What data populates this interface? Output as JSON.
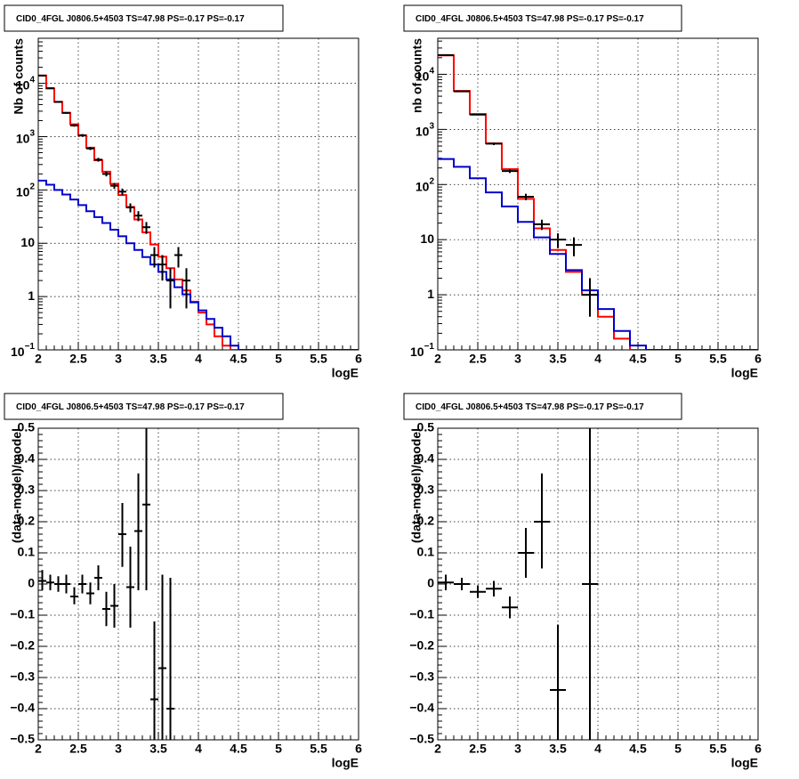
{
  "chart_data": [
    {
      "type": "line",
      "title": "CID0_4FGL J0806.5+4503 TS=47.98 PS=-0.17 PS=-0.17",
      "xlabel": "logE",
      "ylabel": "Nb of counts",
      "xlim": [
        2,
        6
      ],
      "ylim": [
        0.1,
        70000
      ],
      "yscale": "log",
      "grid": true,
      "xticks": [
        2,
        2.5,
        3,
        3.5,
        4,
        4.5,
        5,
        5.5,
        6
      ],
      "xtick_labels": [
        "2",
        "2.5",
        "3",
        "3.5",
        "4",
        "4.5",
        "5",
        "5.5",
        "6"
      ],
      "yticks": [
        0.1,
        1,
        10,
        100,
        1000,
        10000
      ],
      "ytick_labels": [
        "10^-1",
        "1",
        "10",
        "10^2",
        "10^3",
        "10^4"
      ],
      "bin_edges": [
        2.0,
        2.1,
        2.2,
        2.3,
        2.4,
        2.5,
        2.6,
        2.7,
        2.8,
        2.9,
        3.0,
        3.1,
        3.2,
        3.3,
        3.4,
        3.5,
        3.6,
        3.7,
        3.8,
        3.9,
        4.0,
        4.1,
        4.2,
        4.3,
        4.4,
        4.5,
        4.6,
        4.7,
        4.8,
        4.9,
        5.0,
        5.1,
        5.2,
        5.3,
        5.4,
        5.5,
        5.6,
        5.7,
        5.8,
        5.9,
        6.0
      ],
      "series": [
        {
          "color": "#ff0000",
          "style": "step",
          "values": [
            14000,
            8000,
            4500,
            2800,
            1700,
            1050,
            620,
            360,
            220,
            130,
            80,
            48,
            28,
            16,
            9.5,
            5.6,
            3.4,
            2.1,
            1.3,
            0.8,
            0.5,
            0.3,
            0.18,
            0.12,
            0.1,
            0.1,
            0.1,
            0.1,
            0.1,
            0.1,
            0.1,
            0.1,
            0.1,
            0.1,
            0.1,
            0.1,
            0.1,
            0.1,
            0.1,
            0.1
          ]
        },
        {
          "color": "#0000cc",
          "style": "step",
          "values": [
            150,
            125,
            100,
            82,
            66,
            52,
            40,
            31,
            24,
            18,
            13.5,
            10,
            7.5,
            5.5,
            4,
            2.9,
            2.1,
            1.5,
            1.1,
            0.78,
            0.55,
            0.38,
            0.26,
            0.18,
            0.12,
            0.1,
            0.1,
            0.1,
            0.1,
            0.1,
            0.1,
            0.1,
            0.1,
            0.1,
            0.1,
            0.1,
            0.1,
            0.1,
            0.1,
            0.1
          ]
        }
      ],
      "points": [
        {
          "x": 2.05,
          "y": 14000,
          "dx": 0.05,
          "ylo": 13800,
          "yhi": 14200
        },
        {
          "x": 2.15,
          "y": 8100,
          "dx": 0.05,
          "ylo": 7900,
          "yhi": 8300
        },
        {
          "x": 2.25,
          "y": 4480,
          "dx": 0.05,
          "ylo": 4350,
          "yhi": 4620
        },
        {
          "x": 2.35,
          "y": 2790,
          "dx": 0.05,
          "ylo": 2690,
          "yhi": 2890
        },
        {
          "x": 2.45,
          "y": 1620,
          "dx": 0.05,
          "ylo": 1540,
          "yhi": 1700
        },
        {
          "x": 2.55,
          "y": 1060,
          "dx": 0.05,
          "ylo": 1000,
          "yhi": 1120
        },
        {
          "x": 2.65,
          "y": 600,
          "dx": 0.05,
          "ylo": 560,
          "yhi": 640
        },
        {
          "x": 2.75,
          "y": 370,
          "dx": 0.05,
          "ylo": 340,
          "yhi": 400
        },
        {
          "x": 2.85,
          "y": 200,
          "dx": 0.05,
          "ylo": 180,
          "yhi": 220
        },
        {
          "x": 2.95,
          "y": 120,
          "dx": 0.05,
          "ylo": 105,
          "yhi": 135
        },
        {
          "x": 3.05,
          "y": 93,
          "dx": 0.05,
          "ylo": 80,
          "yhi": 106
        },
        {
          "x": 3.15,
          "y": 47,
          "dx": 0.05,
          "ylo": 38,
          "yhi": 56
        },
        {
          "x": 3.25,
          "y": 33,
          "dx": 0.05,
          "ylo": 26,
          "yhi": 40
        },
        {
          "x": 3.35,
          "y": 20,
          "dx": 0.05,
          "ylo": 15,
          "yhi": 25
        },
        {
          "x": 3.45,
          "y": 6,
          "dx": 0.05,
          "ylo": 3.5,
          "yhi": 8.5
        },
        {
          "x": 3.55,
          "y": 4,
          "dx": 0.05,
          "ylo": 2,
          "yhi": 6
        },
        {
          "x": 3.65,
          "y": 2,
          "dx": 0.05,
          "ylo": 0.6,
          "yhi": 3.4
        },
        {
          "x": 3.75,
          "y": 6,
          "dx": 0.05,
          "ylo": 3.5,
          "yhi": 8.5
        },
        {
          "x": 3.85,
          "y": 2,
          "dx": 0.05,
          "ylo": 0.6,
          "yhi": 3.4
        }
      ]
    },
    {
      "type": "line",
      "title": "CID0_4FGL J0806.5+4503 TS=47.98 PS=-0.17 PS=-0.17",
      "xlabel": "logE",
      "ylabel": "nb of counts",
      "xlim": [
        2,
        6
      ],
      "ylim": [
        0.1,
        45000
      ],
      "yscale": "log",
      "grid": true,
      "xticks": [
        2,
        2.5,
        3,
        3.5,
        4,
        4.5,
        5,
        5.5,
        6
      ],
      "xtick_labels": [
        "2",
        "2.5",
        "3",
        "3.5",
        "4",
        "4.5",
        "5",
        "5.5",
        "6"
      ],
      "yticks": [
        0.1,
        1,
        10,
        100,
        1000,
        10000
      ],
      "ytick_labels": [
        "10^-1",
        "1",
        "10",
        "10^2",
        "10^3",
        "10^4"
      ],
      "bin_edges": [
        2.0,
        2.2,
        2.4,
        2.6,
        2.8,
        3.0,
        3.2,
        3.4,
        3.6,
        3.8,
        4.0,
        4.2,
        4.4,
        4.6,
        4.8,
        5.0,
        5.2,
        5.4,
        5.6,
        5.8,
        6.0
      ],
      "series": [
        {
          "color": "#ff0000",
          "style": "step",
          "values": [
            22000,
            5000,
            1900,
            560,
            190,
            55,
            16,
            6.5,
            2.6,
            1.0,
            0.4,
            0.16,
            0.1,
            0.1,
            0.1,
            0.1,
            0.1,
            0.1,
            0.1,
            0.1
          ]
        },
        {
          "color": "#0000cc",
          "style": "step",
          "values": [
            290,
            210,
            130,
            72,
            40,
            21,
            11,
            5.5,
            2.8,
            1.2,
            0.55,
            0.22,
            0.12,
            0.1,
            0.1,
            0.1,
            0.1,
            0.1,
            0.1,
            0.1
          ]
        }
      ],
      "points": [
        {
          "x": 2.1,
          "y": 22300,
          "dx": 0.1,
          "ylo": 22100,
          "yhi": 22500
        },
        {
          "x": 2.3,
          "y": 4900,
          "dx": 0.1,
          "ylo": 4800,
          "yhi": 5000
        },
        {
          "x": 2.5,
          "y": 1850,
          "dx": 0.1,
          "ylo": 1800,
          "yhi": 1900
        },
        {
          "x": 2.7,
          "y": 550,
          "dx": 0.1,
          "ylo": 520,
          "yhi": 580
        },
        {
          "x": 2.9,
          "y": 176,
          "dx": 0.1,
          "ylo": 162,
          "yhi": 190
        },
        {
          "x": 3.1,
          "y": 60,
          "dx": 0.1,
          "ylo": 52,
          "yhi": 68
        },
        {
          "x": 3.3,
          "y": 19,
          "dx": 0.1,
          "ylo": 15,
          "yhi": 23
        },
        {
          "x": 3.5,
          "y": 10,
          "dx": 0.1,
          "ylo": 7,
          "yhi": 13
        },
        {
          "x": 3.7,
          "y": 8,
          "dx": 0.1,
          "ylo": 5,
          "yhi": 11
        },
        {
          "x": 3.9,
          "y": 1,
          "dx": 0.1,
          "ylo": 0.4,
          "yhi": 2
        }
      ]
    },
    {
      "type": "scatter",
      "title": "CID0_4FGL J0806.5+4503 TS=47.98 PS=-0.17 PS=-0.17",
      "xlabel": "logE",
      "ylabel": "(data-model)/model",
      "xlim": [
        2,
        6
      ],
      "ylim": [
        -0.5,
        0.5
      ],
      "yscale": "linear",
      "grid": true,
      "xticks": [
        2,
        2.5,
        3,
        3.5,
        4,
        4.5,
        5,
        5.5,
        6
      ],
      "xtick_labels": [
        "2",
        "2.5",
        "3",
        "3.5",
        "4",
        "4.5",
        "5",
        "5.5",
        "6"
      ],
      "yticks": [
        -0.5,
        -0.4,
        -0.3,
        -0.2,
        -0.1,
        0,
        0.1,
        0.2,
        0.3,
        0.4,
        0.5
      ],
      "ytick_labels": [
        "−0.5",
        "−0.4",
        "−0.3",
        "−0.2",
        "−0.1",
        "0",
        "0.1",
        "0.2",
        "0.3",
        "0.4",
        "0.5"
      ],
      "points": [
        {
          "x": 2.05,
          "y": 0.01,
          "dx": 0.05,
          "ylo": -0.02,
          "yhi": 0.045
        },
        {
          "x": 2.15,
          "y": 0.005,
          "dx": 0.05,
          "ylo": -0.02,
          "yhi": 0.03
        },
        {
          "x": 2.25,
          "y": 0.0,
          "dx": 0.05,
          "ylo": -0.025,
          "yhi": 0.025
        },
        {
          "x": 2.35,
          "y": 0.0,
          "dx": 0.05,
          "ylo": -0.03,
          "yhi": 0.03
        },
        {
          "x": 2.45,
          "y": -0.04,
          "dx": 0.05,
          "ylo": -0.065,
          "yhi": -0.01
        },
        {
          "x": 2.55,
          "y": 0.0,
          "dx": 0.05,
          "ylo": -0.03,
          "yhi": 0.03
        },
        {
          "x": 2.65,
          "y": -0.03,
          "dx": 0.05,
          "ylo": -0.065,
          "yhi": 0.005
        },
        {
          "x": 2.75,
          "y": 0.02,
          "dx": 0.05,
          "ylo": -0.02,
          "yhi": 0.06
        },
        {
          "x": 2.85,
          "y": -0.08,
          "dx": 0.05,
          "ylo": -0.135,
          "yhi": -0.025
        },
        {
          "x": 2.95,
          "y": -0.07,
          "dx": 0.05,
          "ylo": -0.14,
          "yhi": 0.0
        },
        {
          "x": 3.05,
          "y": 0.16,
          "dx": 0.05,
          "ylo": 0.055,
          "yhi": 0.26
        },
        {
          "x": 3.15,
          "y": -0.01,
          "dx": 0.05,
          "ylo": -0.14,
          "yhi": 0.12
        },
        {
          "x": 3.25,
          "y": 0.17,
          "dx": 0.05,
          "ylo": -0.02,
          "yhi": 0.355
        },
        {
          "x": 3.35,
          "y": 0.255,
          "dx": 0.05,
          "ylo": -0.02,
          "yhi": 0.5
        },
        {
          "x": 3.45,
          "y": -0.37,
          "dx": 0.05,
          "ylo": -0.5,
          "yhi": -0.12
        },
        {
          "x": 3.55,
          "y": -0.27,
          "dx": 0.05,
          "ylo": -0.5,
          "yhi": 0.03
        },
        {
          "x": 3.65,
          "y": -0.4,
          "dx": 0.05,
          "ylo": -0.5,
          "yhi": 0.02
        }
      ]
    },
    {
      "type": "scatter",
      "title": "CID0_4FGL J0806.5+4503 TS=47.98 PS=-0.17 PS=-0.17",
      "xlabel": "logE",
      "ylabel": "(data-model)/model",
      "xlim": [
        2,
        6
      ],
      "ylim": [
        -0.5,
        0.5
      ],
      "yscale": "linear",
      "grid": true,
      "xticks": [
        2,
        2.5,
        3,
        3.5,
        4,
        4.5,
        5,
        5.5,
        6
      ],
      "xtick_labels": [
        "2",
        "2.5",
        "3",
        "3.5",
        "4",
        "4.5",
        "5",
        "5.5",
        "6"
      ],
      "yticks": [
        -0.5,
        -0.4,
        -0.3,
        -0.2,
        -0.1,
        0,
        0.1,
        0.2,
        0.3,
        0.4,
        0.5
      ],
      "ytick_labels": [
        "−0.5",
        "−0.4",
        "−0.3",
        "−0.2",
        "−0.1",
        "0",
        "0.1",
        "0.2",
        "0.3",
        "0.4",
        "0.5"
      ],
      "points": [
        {
          "x": 2.1,
          "y": 0.005,
          "dx": 0.1,
          "ylo": -0.02,
          "yhi": 0.03
        },
        {
          "x": 2.3,
          "y": 0.0,
          "dx": 0.1,
          "ylo": -0.02,
          "yhi": 0.02
        },
        {
          "x": 2.5,
          "y": -0.025,
          "dx": 0.1,
          "ylo": -0.045,
          "yhi": -0.005
        },
        {
          "x": 2.7,
          "y": -0.015,
          "dx": 0.1,
          "ylo": -0.04,
          "yhi": 0.01
        },
        {
          "x": 2.9,
          "y": -0.075,
          "dx": 0.1,
          "ylo": -0.11,
          "yhi": -0.04
        },
        {
          "x": 3.1,
          "y": 0.1,
          "dx": 0.1,
          "ylo": 0.02,
          "yhi": 0.18
        },
        {
          "x": 3.3,
          "y": 0.2,
          "dx": 0.1,
          "ylo": 0.05,
          "yhi": 0.355
        },
        {
          "x": 3.5,
          "y": -0.34,
          "dx": 0.1,
          "ylo": -0.5,
          "yhi": -0.13
        },
        {
          "x": 3.9,
          "y": 0.0,
          "dx": 0.1,
          "ylo": -0.5,
          "yhi": 0.5
        }
      ]
    }
  ]
}
